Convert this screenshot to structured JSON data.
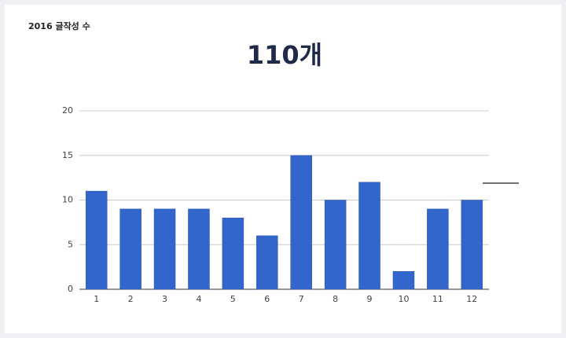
{
  "chart_data": {
    "type": "bar",
    "title": "2016 글작성 수",
    "summary": "110개",
    "categories": [
      "1",
      "2",
      "3",
      "4",
      "5",
      "6",
      "7",
      "8",
      "9",
      "10",
      "11",
      "12"
    ],
    "values": [
      11,
      9,
      9,
      9,
      8,
      6,
      15,
      10,
      12,
      2,
      9,
      10
    ],
    "color": "#3366cc",
    "ylim": [
      0,
      20
    ],
    "yticks": [
      0,
      5,
      10,
      15,
      20
    ],
    "grid": true
  }
}
